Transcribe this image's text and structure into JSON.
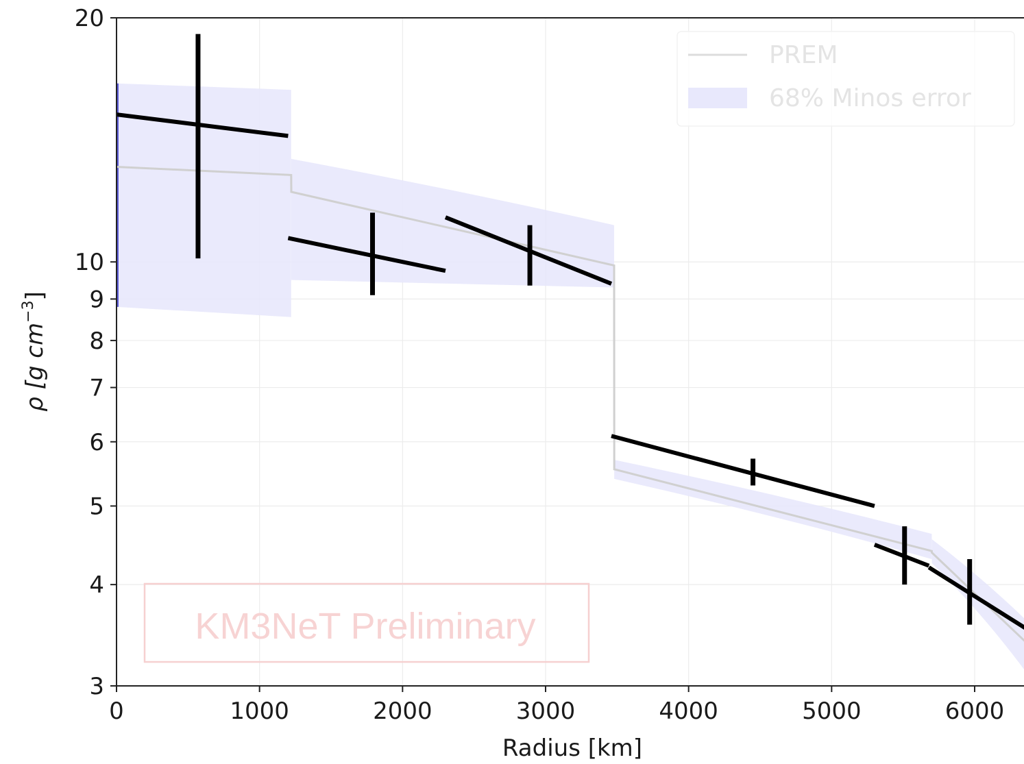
{
  "chart_data": {
    "type": "line",
    "title": "",
    "xlabel": "Radius [km]",
    "ylabel": "ρ [g cm⁻³]",
    "ylabel_parts": {
      "main": "ρ [g cm",
      "sup": "−3",
      "close": "]"
    },
    "xlim": [
      0,
      6371
    ],
    "ylim": [
      3,
      20
    ],
    "yscale": "log",
    "xticks": [
      0,
      1000,
      2000,
      3000,
      4000,
      5000,
      6000
    ],
    "xtick_labels": [
      "0",
      "1000",
      "2000",
      "3000",
      "4000",
      "5000",
      "6000"
    ],
    "yticks": [
      3,
      4,
      5,
      6,
      7,
      8,
      9,
      10,
      20
    ],
    "ytick_labels": [
      "3",
      "4",
      "5",
      "6",
      "7",
      "8",
      "9",
      "10",
      "20"
    ],
    "grid": true,
    "legend": {
      "placement": "top-right",
      "entries": [
        {
          "label": "PREM",
          "kind": "line",
          "color": "#d9d9d9"
        },
        {
          "label": "68% Minos error",
          "kind": "band",
          "color": "#e4e4fb"
        }
      ]
    },
    "watermark": {
      "text": "KM3NeT Preliminary",
      "color": "#f4c4c4",
      "placement": "bottom-left"
    },
    "prem": {
      "color": "#d0d0d0",
      "x": [
        0,
        1221,
        1222,
        3479,
        3480,
        5700,
        5701,
        6371
      ],
      "y": [
        13.1,
        12.8,
        12.2,
        9.9,
        5.55,
        4.4,
        4.38,
        3.38
      ]
    },
    "prem_error_band": {
      "color": "#e6e6fc",
      "segments": [
        {
          "x": [
            0,
            1221
          ],
          "lower": [
            8.8,
            8.55
          ],
          "upper": [
            16.6,
            16.3
          ]
        },
        {
          "x": [
            1222,
            3479
          ],
          "lower": [
            9.5,
            9.3
          ],
          "upper": [
            13.4,
            11.1
          ]
        },
        {
          "x": [
            3480,
            5700
          ],
          "lower": [
            5.4,
            4.3
          ],
          "upper": [
            5.7,
            4.62
          ]
        },
        {
          "x": [
            5701,
            6371
          ],
          "lower": [
            4.25,
            3.1
          ],
          "upper": [
            4.55,
            3.6
          ]
        }
      ]
    },
    "fit_segments": {
      "color": "#000000",
      "segments": [
        {
          "x": [
            0,
            1200
          ],
          "y": [
            15.2,
            14.3
          ]
        },
        {
          "x": [
            1200,
            2300
          ],
          "y": [
            10.7,
            9.75
          ]
        },
        {
          "x": [
            2300,
            3460
          ],
          "y": [
            11.35,
            9.4
          ]
        },
        {
          "x": [
            3460,
            5300
          ],
          "y": [
            6.1,
            5.0
          ]
        },
        {
          "x": [
            5300,
            5680
          ],
          "y": [
            4.48,
            4.22
          ]
        },
        {
          "x": [
            5680,
            6371
          ],
          "y": [
            4.2,
            3.52
          ]
        }
      ]
    },
    "error_bars": {
      "color": "#000000",
      "points": [
        {
          "x": 570,
          "y": 14.7,
          "low": 10.1,
          "high": 19.1
        },
        {
          "x": 1790,
          "y": 10.25,
          "low": 9.1,
          "high": 11.5
        },
        {
          "x": 2890,
          "y": 10.2,
          "low": 9.35,
          "high": 11.1
        },
        {
          "x": 4450,
          "y": 5.5,
          "low": 5.3,
          "high": 5.72
        },
        {
          "x": 5510,
          "y": 4.35,
          "low": 4.0,
          "high": 4.72
        },
        {
          "x": 5965,
          "y": 3.92,
          "low": 3.57,
          "high": 4.3
        }
      ]
    }
  }
}
